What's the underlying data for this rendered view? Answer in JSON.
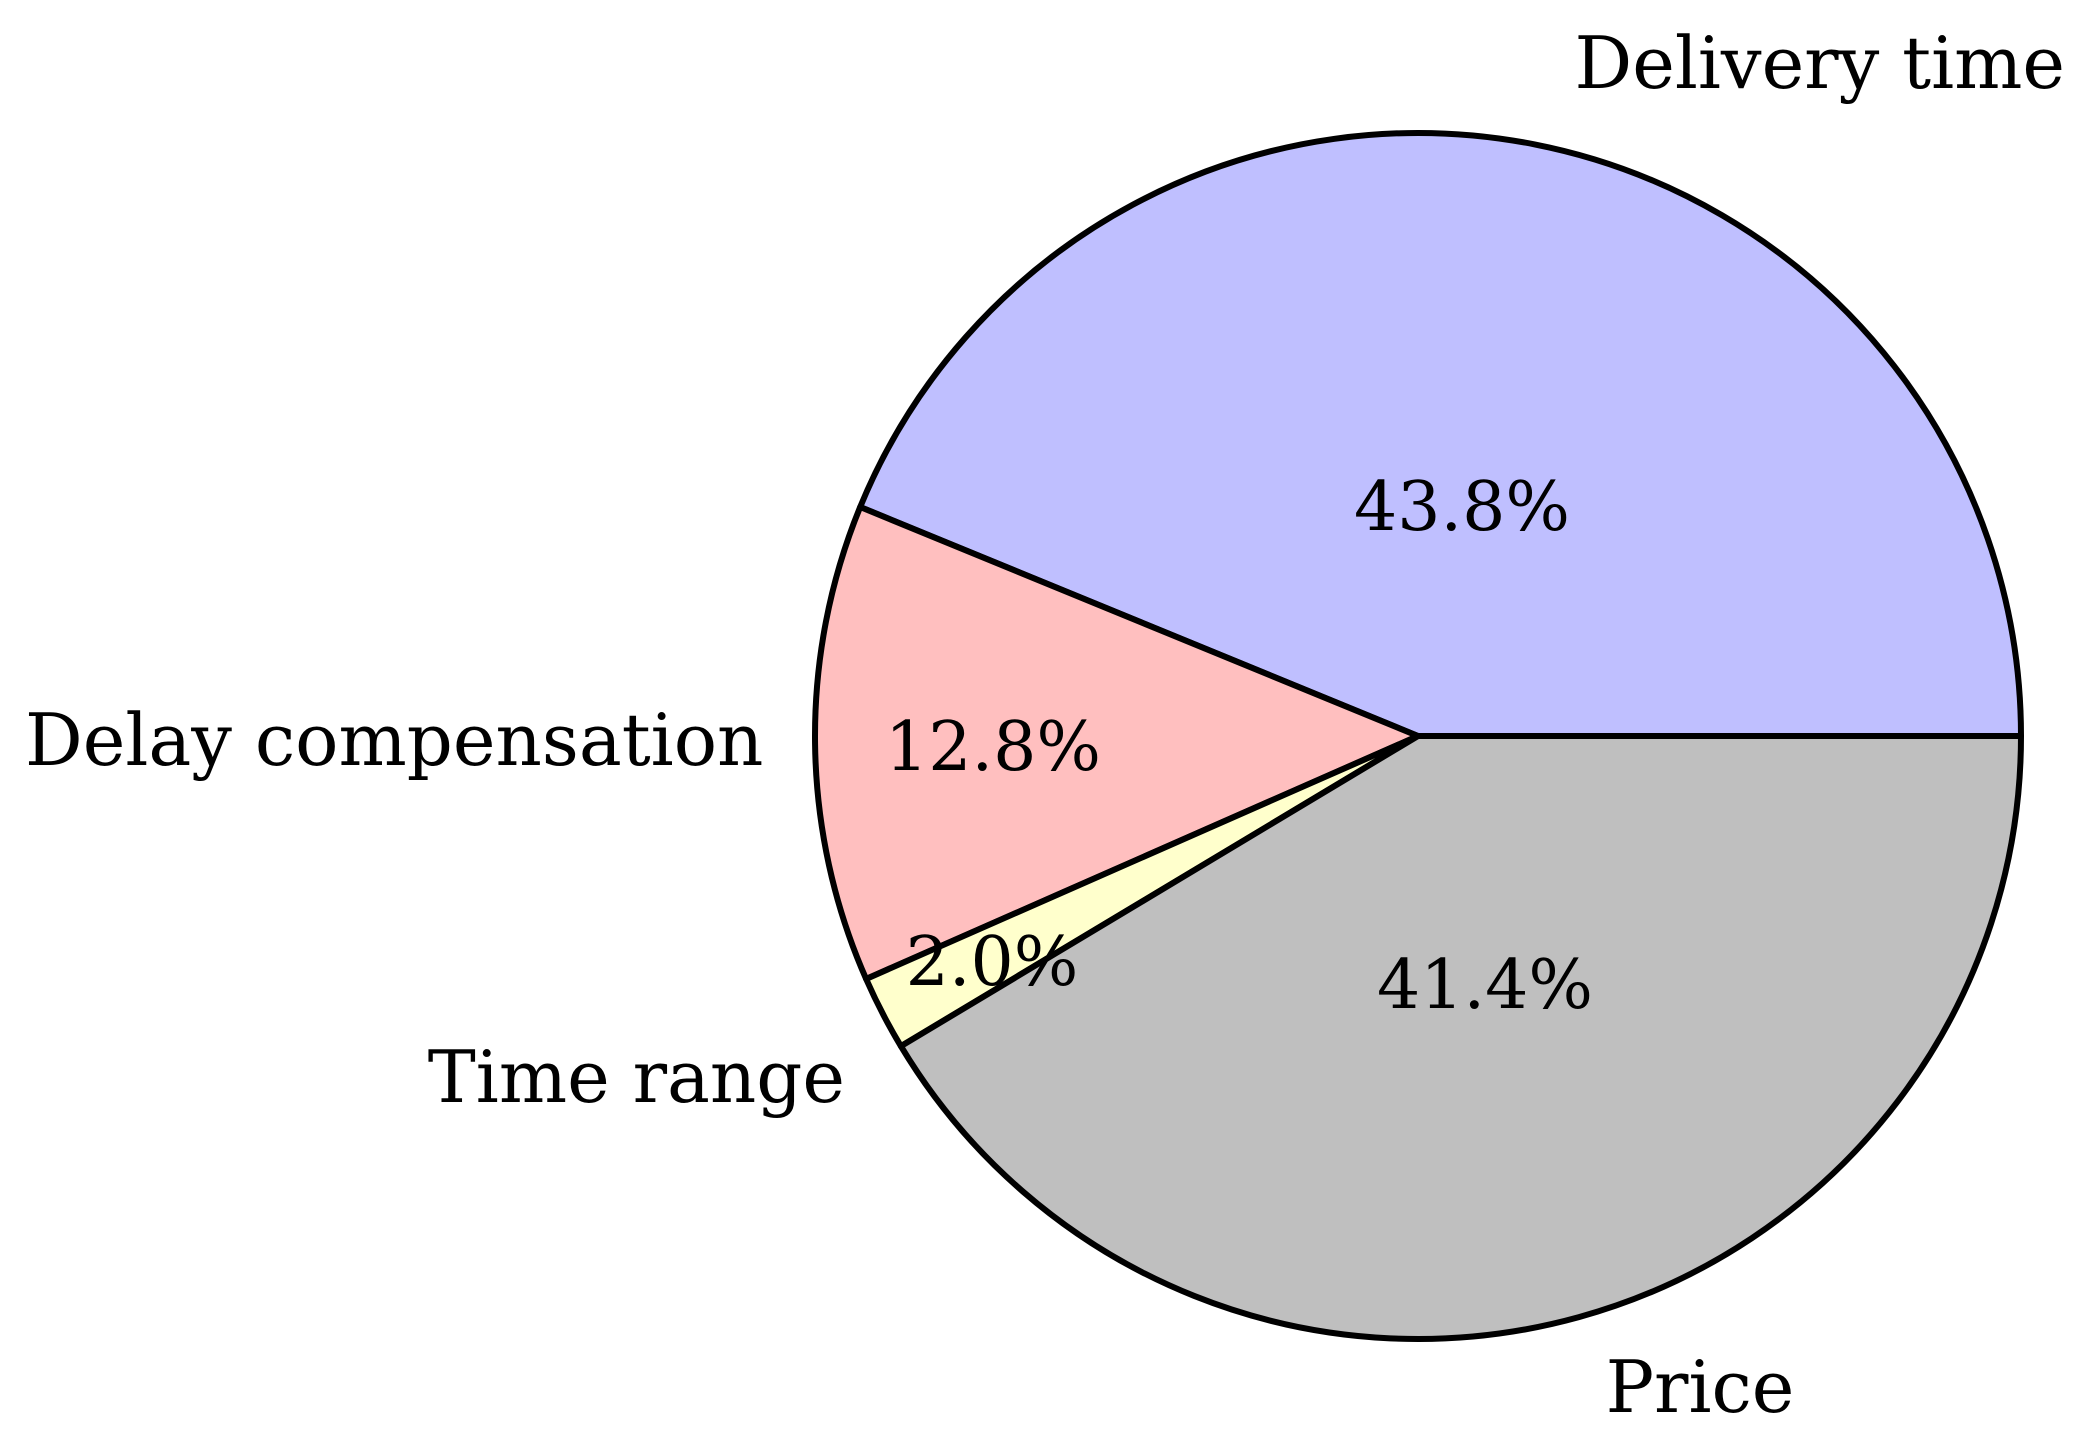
{
  "chart_data": {
    "type": "pie",
    "title": "",
    "slices": [
      {
        "label": "Delivery time",
        "value": 43.8,
        "value_label": "43.8%",
        "color": "#BFBFFF"
      },
      {
        "label": "Delay compensation",
        "value": 12.8,
        "value_label": "12.8%",
        "color": "#FFBFBF"
      },
      {
        "label": "Time range",
        "value": 2.0,
        "value_label": "2.0%",
        "color": "#FFFFCC"
      },
      {
        "label": "Price",
        "value": 41.4,
        "value_label": "41.4%",
        "color": "#BFBFBF"
      }
    ]
  }
}
